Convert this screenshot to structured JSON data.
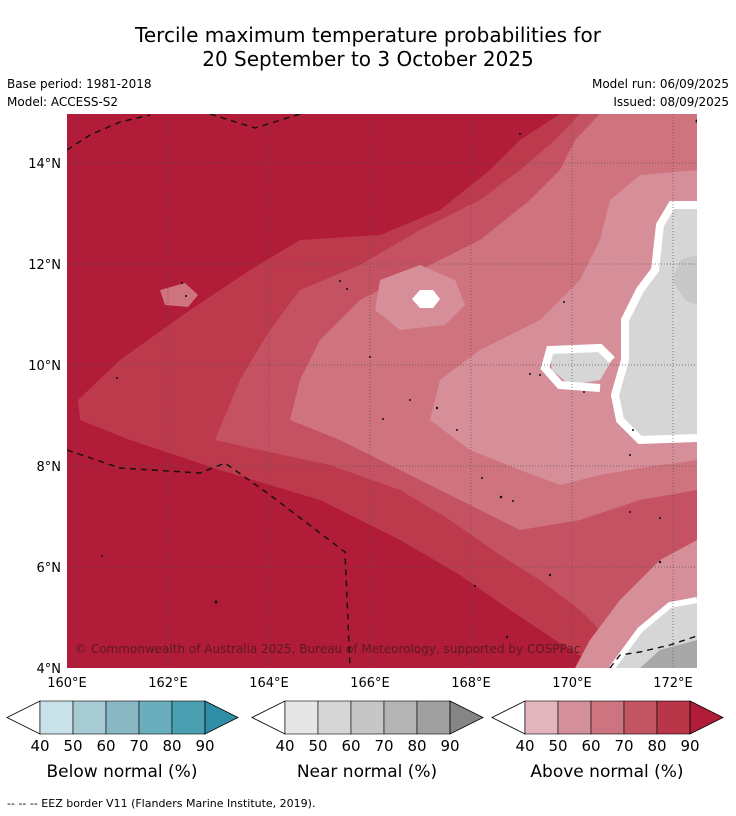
{
  "title_line1": "Tercile maximum temperature probabilities for",
  "title_line2": "20 September to 3 October 2025",
  "base_period": "Base period: 1981-2018",
  "model": "Model: ACCESS-S2",
  "model_run": "Model run: 06/09/2025",
  "issued": "Issued: 08/09/2025",
  "copyright": "© Commonwealth of Australia 2025, Bureau of Meteorology, supported by COSPPac",
  "lat_ticks": [
    "14°N",
    "12°N",
    "10°N",
    "8°N",
    "6°N",
    "4°N"
  ],
  "lon_ticks": [
    "160°E",
    "162°E",
    "164°E",
    "166°E",
    "168°E",
    "170°E",
    "172°E"
  ],
  "colorbars": [
    {
      "label": "Below normal (%)",
      "ticks": [
        "40",
        "50",
        "60",
        "70",
        "80",
        "90"
      ],
      "colors": [
        "#c9e2ea",
        "#a7cbd3",
        "#89b8c4",
        "#6aaebd",
        "#4a9fb1",
        "#2e8fa6"
      ]
    },
    {
      "label": "Near normal (%)",
      "ticks": [
        "40",
        "50",
        "60",
        "70",
        "80",
        "90"
      ],
      "colors": [
        "#e6e6e6",
        "#d6d6d6",
        "#c6c6c6",
        "#b4b4b4",
        "#a0a0a0",
        "#858585"
      ]
    },
    {
      "label": "Above normal (%)",
      "ticks": [
        "40",
        "50",
        "60",
        "70",
        "80",
        "90"
      ],
      "colors": [
        "#e2b5bc",
        "#d4909a",
        "#cc7480",
        "#c35562",
        "#b93548",
        "#b11c38"
      ]
    }
  ],
  "footer": "--  --  -- EEZ border V11 (Flanders Marine Institute, 2019).",
  "colors": {
    "above_90": "#b11c38",
    "above_80": "#bd3a4c",
    "above_70": "#c55262",
    "above_60": "#cf737f",
    "above_50": "#d68f98",
    "near_40": "#d6d6d6",
    "near_50": "#c8c8c8",
    "near_70": "#a8a8a8"
  }
}
